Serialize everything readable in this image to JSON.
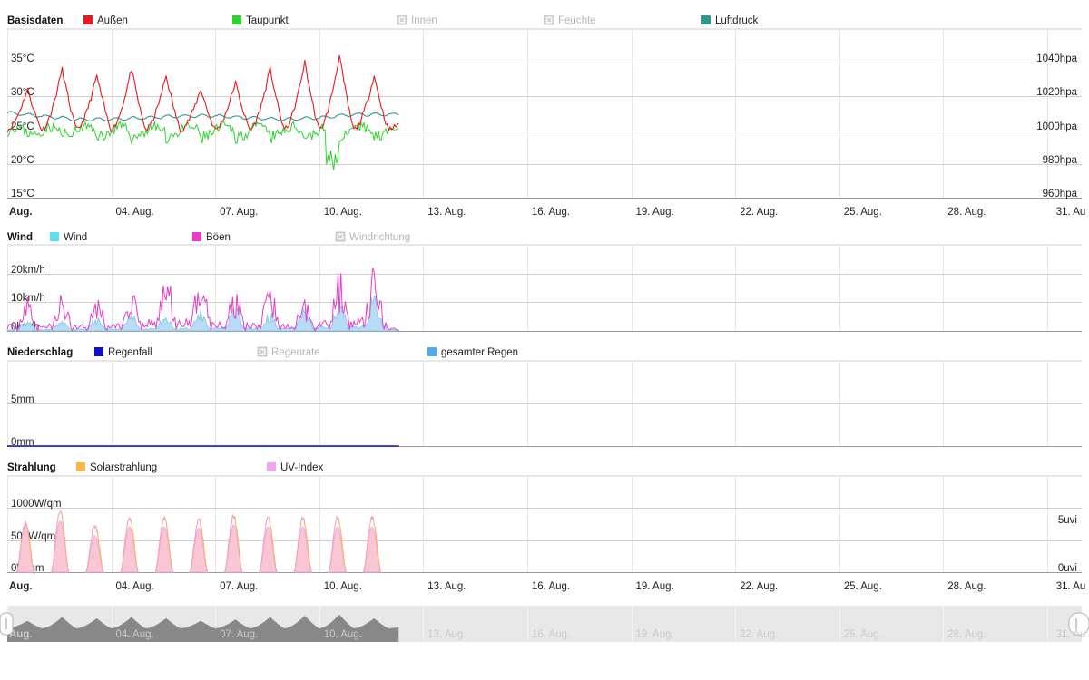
{
  "colors": {
    "aussen": "#e8181c",
    "taupunkt": "#2bd42b",
    "luftdruck": "#2b9a8e",
    "wind": "#5ae0f0",
    "boeen": "#e83cc8",
    "regenfall": "#1010c8",
    "gesamter_regen": "#4eaaf0",
    "solar": "#f5b84a",
    "uv": "#f3a6f0",
    "disabled": "#c9c9c9"
  },
  "x_axis": {
    "first_label": "Aug.",
    "labels": [
      "04. Aug.",
      "07. Aug.",
      "10. Aug.",
      "13. Aug.",
      "16. Aug.",
      "19. Aug.",
      "22. Aug.",
      "25. Aug.",
      "28. Aug.",
      "31. Au"
    ]
  },
  "navigator": {
    "first_label": "Aug.",
    "labels": [
      "04. Aug.",
      "07. Aug.",
      "10. Aug.",
      "13. Aug.",
      "16. Aug.",
      "19. Aug.",
      "22. Aug.",
      "25. Aug.",
      "28. Aug.",
      "31. Au"
    ]
  },
  "panels": {
    "basis": {
      "title": "Basisdaten",
      "legend": [
        {
          "label": "Außen",
          "icon": "color-swatch",
          "active": true,
          "color_key": "aussen"
        },
        {
          "label": "Taupunkt",
          "icon": "color-swatch",
          "active": true,
          "color_key": "taupunkt"
        },
        {
          "label": "Innen",
          "icon": "disabled-box-icon",
          "active": false
        },
        {
          "label": "Feuchte",
          "icon": "disabled-box-icon",
          "active": false
        },
        {
          "label": "Luftdruck",
          "icon": "color-swatch",
          "active": true,
          "color_key": "luftdruck"
        }
      ],
      "yticks_left": [
        "35°C",
        "30°C",
        "25°C",
        "20°C",
        "15°C"
      ],
      "yticks_right": [
        "1040hpa",
        "1020hpa",
        "1000hpa",
        "980hpa",
        "960hpa"
      ]
    },
    "wind": {
      "title": "Wind",
      "legend": [
        {
          "label": "Wind",
          "icon": "color-swatch",
          "active": true,
          "color_key": "wind"
        },
        {
          "label": "Böen",
          "icon": "color-swatch",
          "active": true,
          "color_key": "boeen"
        },
        {
          "label": "Windrichtung",
          "icon": "disabled-box-icon",
          "active": false
        }
      ],
      "yticks_left": [
        "20km/h",
        "10km/h",
        "0km/h"
      ]
    },
    "regen": {
      "title": "Niederschlag",
      "legend": [
        {
          "label": "Regenfall",
          "icon": "color-swatch",
          "active": true,
          "color_key": "regenfall"
        },
        {
          "label": "Regenrate",
          "icon": "disabled-box-icon",
          "active": false
        },
        {
          "label": "gesamter Regen",
          "icon": "color-swatch",
          "active": true,
          "color_key": "gesamter_regen"
        }
      ],
      "yticks_left": [
        "5mm",
        "0mm"
      ]
    },
    "strahlung": {
      "title": "Strahlung",
      "legend": [
        {
          "label": "Solarstrahlung",
          "icon": "color-swatch",
          "active": true,
          "color_key": "solar"
        },
        {
          "label": "UV-Index",
          "icon": "color-swatch",
          "active": true,
          "color_key": "uv"
        }
      ],
      "yticks_left": [
        "1000W/qm",
        "500W/qm",
        "0W/qm"
      ],
      "yticks_right": [
        "5uvi",
        "0uvi"
      ]
    }
  },
  "chart_data": [
    {
      "type": "line",
      "name": "Basisdaten",
      "x_range": [
        "01. Aug.",
        "31. Aug."
      ],
      "x_data_end": "12. Aug.",
      "ylim_left": [
        15,
        35
      ],
      "ylim_right": [
        960,
        1040
      ],
      "grid": true,
      "series": [
        {
          "name": "Außen",
          "unit": "°C",
          "daily_min": [
            25,
            25,
            25,
            25,
            25,
            25,
            25,
            25,
            25,
            25,
            25,
            25
          ],
          "daily_max": [
            31,
            34,
            33,
            34,
            33,
            31,
            32,
            34,
            35,
            36,
            33,
            28
          ]
        },
        {
          "name": "Taupunkt",
          "unit": "°C",
          "daily_min": [
            24,
            24,
            23,
            23,
            23,
            23,
            23,
            23,
            23,
            19,
            23,
            25
          ],
          "daily_max": [
            26,
            26,
            26,
            26,
            26,
            26,
            26,
            26,
            26,
            26,
            26,
            26
          ]
        },
        {
          "name": "Luftdruck",
          "unit": "hpa",
          "values_daily": [
            1010,
            1008,
            1006,
            1006,
            1007,
            1008,
            1008,
            1007,
            1006,
            1007,
            1009,
            1009
          ]
        }
      ]
    },
    {
      "type": "area",
      "name": "Wind",
      "x_range": [
        "01. Aug.",
        "31. Aug."
      ],
      "x_data_end": "12. Aug.",
      "ylim": [
        0,
        25
      ],
      "series": [
        {
          "name": "Wind",
          "unit": "km/h",
          "daily_max": [
            4,
            4,
            5,
            6,
            6,
            8,
            9,
            7,
            8,
            11,
            13,
            4
          ]
        },
        {
          "name": "Böen",
          "unit": "km/h",
          "daily_max": [
            12,
            13,
            13,
            14,
            21,
            22,
            17,
            15,
            12,
            22,
            24,
            5
          ]
        }
      ]
    },
    {
      "type": "line",
      "name": "Niederschlag",
      "x_range": [
        "01. Aug.",
        "31. Aug."
      ],
      "x_data_end": "12. Aug.",
      "ylim": [
        0,
        10
      ],
      "series": [
        {
          "name": "Regenfall",
          "unit": "mm",
          "values_daily": [
            0,
            0,
            0,
            0,
            0,
            0,
            0,
            0,
            0,
            0,
            0,
            0
          ]
        },
        {
          "name": "gesamter Regen",
          "unit": "mm",
          "values_daily": [
            0,
            0,
            0,
            0,
            0,
            0,
            0,
            0,
            0,
            0,
            0,
            0
          ]
        }
      ]
    },
    {
      "type": "area",
      "name": "Strahlung",
      "x_range": [
        "01. Aug.",
        "31. Aug."
      ],
      "x_data_end": "12. Aug.",
      "ylim_left": [
        0,
        1100
      ],
      "ylim_right": [
        0,
        6
      ],
      "series": [
        {
          "name": "Solarstrahlung",
          "unit": "W/qm",
          "daily_peak": [
            800,
            980,
            760,
            880,
            880,
            860,
            920,
            880,
            880,
            880,
            880,
            0
          ]
        },
        {
          "name": "UV-Index",
          "unit": "uvi",
          "daily_peak": [
            4.7,
            5.2,
            3.7,
            4.6,
            4.6,
            4.5,
            4.8,
            4.6,
            4.6,
            4.6,
            4.6,
            0
          ]
        }
      ]
    }
  ]
}
